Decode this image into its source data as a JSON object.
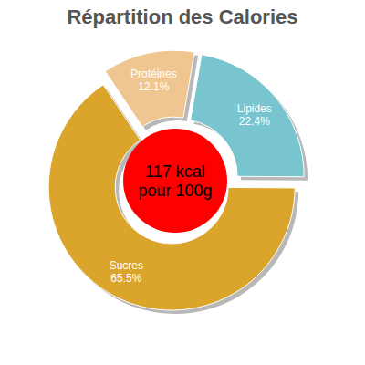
{
  "chart_data": {
    "type": "pie",
    "title": "Répartition des Calories",
    "categories": [
      "Lipides",
      "Sucres",
      "Protéines"
    ],
    "values": [
      22.4,
      65.5,
      12.1
    ],
    "value_labels": [
      "22.4%",
      "65.5%",
      "12.1%"
    ],
    "colors": [
      "#78c5cf",
      "#dba42a",
      "#f0c690"
    ],
    "data_labels": true,
    "annotations": [
      "117 kcal",
      "pour 100g"
    ]
  }
}
